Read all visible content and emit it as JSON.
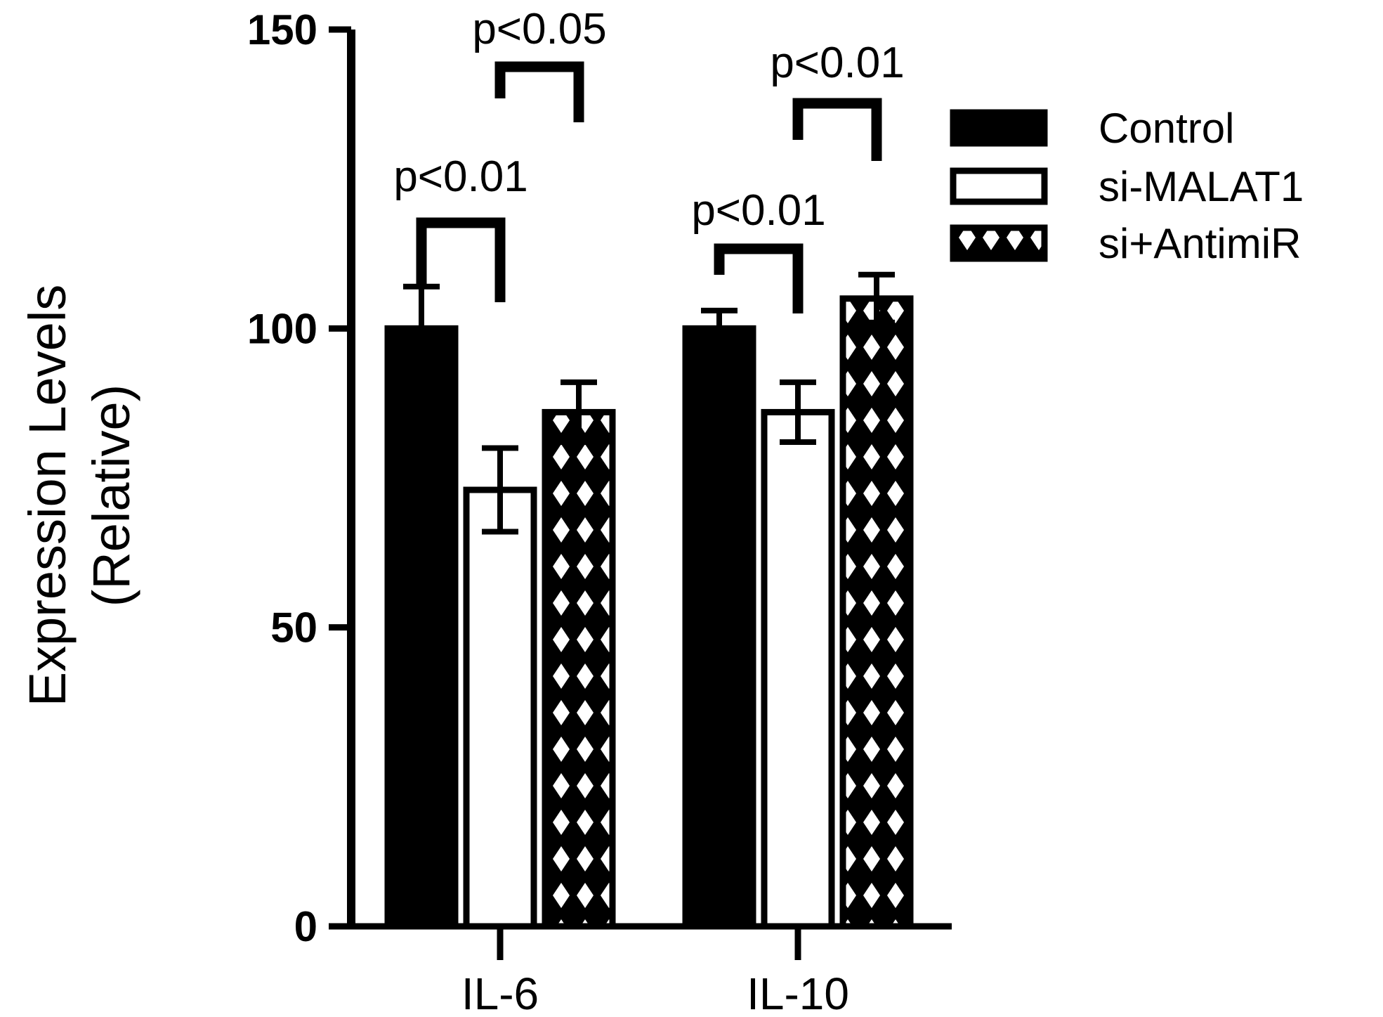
{
  "chart_data": {
    "type": "bar",
    "title": "",
    "xlabel": "",
    "ylabel_lines": [
      "Expression Levels",
      "(Relative)"
    ],
    "categories": [
      "IL-6",
      "IL-10"
    ],
    "ylim": [
      0,
      150
    ],
    "yticks": [
      0,
      50,
      100,
      150
    ],
    "grid": false,
    "legend_position": "top-right",
    "series": [
      {
        "name": "Control",
        "fill": "solid",
        "color": "#000000",
        "values": [
          100,
          100
        ],
        "errors": [
          7,
          3
        ]
      },
      {
        "name": "si-MALAT1",
        "fill": "open",
        "color": "#ffffff",
        "values": [
          73,
          86
        ],
        "errors": [
          7,
          5
        ]
      },
      {
        "name": "si+AntimiR",
        "fill": "crosshatch",
        "color": "#000000",
        "values": [
          86,
          105
        ],
        "errors": [
          5,
          4
        ]
      }
    ],
    "annotations": [
      {
        "category": 0,
        "from_series": 0,
        "to_series": 1,
        "text": "p<0.01"
      },
      {
        "category": 0,
        "from_series": 1,
        "to_series": 2,
        "text": "p<0.05"
      },
      {
        "category": 1,
        "from_series": 0,
        "to_series": 1,
        "text": "p<0.01"
      },
      {
        "category": 1,
        "from_series": 1,
        "to_series": 2,
        "text": "p<0.01"
      }
    ]
  }
}
